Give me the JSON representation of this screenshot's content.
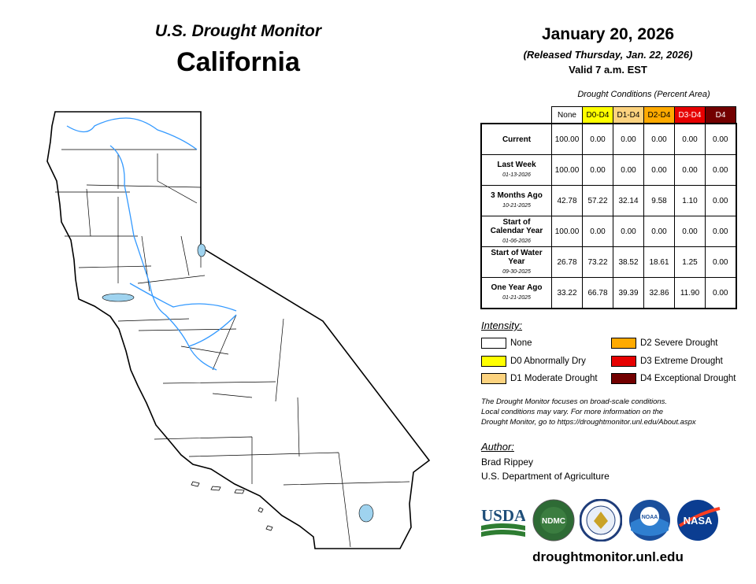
{
  "header": {
    "title": "U.S. Drought Monitor",
    "region": "California",
    "date": "January 20, 2026",
    "released": "(Released Thursday, Jan. 22, 2026)",
    "valid": "Valid 7 a.m. EST"
  },
  "table": {
    "title": "Drought Conditions (Percent Area)",
    "columns": [
      {
        "label": "None",
        "color": "#ffffff",
        "text_color": "#000000"
      },
      {
        "label": "D0-D4",
        "color": "#ffff00",
        "text_color": "#000000"
      },
      {
        "label": "D1-D4",
        "color": "#fcd37f",
        "text_color": "#000000"
      },
      {
        "label": "D2-D4",
        "color": "#ffaa00",
        "text_color": "#000000"
      },
      {
        "label": "D3-D4",
        "color": "#e60000",
        "text_color": "#ffffff"
      },
      {
        "label": "D4",
        "color": "#730000",
        "text_color": "#ffffff"
      }
    ],
    "rows": [
      {
        "label": "Current",
        "sub": "",
        "values": [
          "100.00",
          "0.00",
          "0.00",
          "0.00",
          "0.00",
          "0.00"
        ]
      },
      {
        "label": "Last Week",
        "sub": "01-13-2026",
        "values": [
          "100.00",
          "0.00",
          "0.00",
          "0.00",
          "0.00",
          "0.00"
        ]
      },
      {
        "label": "3 Months Ago",
        "sub": "10-21-2025",
        "values": [
          "42.78",
          "57.22",
          "32.14",
          "9.58",
          "1.10",
          "0.00"
        ]
      },
      {
        "label": "Start of Calendar Year",
        "sub": "01-06-2026",
        "values": [
          "100.00",
          "0.00",
          "0.00",
          "0.00",
          "0.00",
          "0.00"
        ]
      },
      {
        "label": "Start of Water Year",
        "sub": "09-30-2025",
        "values": [
          "26.78",
          "73.22",
          "38.52",
          "18.61",
          "1.25",
          "0.00"
        ]
      },
      {
        "label": "One Year Ago",
        "sub": "01-21-2025",
        "values": [
          "33.22",
          "66.78",
          "39.39",
          "32.86",
          "11.90",
          "0.00"
        ]
      }
    ]
  },
  "legend": {
    "title": "Intensity:",
    "items": [
      {
        "label": "None",
        "color": "#ffffff"
      },
      {
        "label": "D0 Abnormally Dry",
        "color": "#ffff00"
      },
      {
        "label": "D1 Moderate Drought",
        "color": "#fcd37f"
      },
      {
        "label": "D2 Severe Drought",
        "color": "#ffaa00"
      },
      {
        "label": "D3 Extreme Drought",
        "color": "#e60000"
      },
      {
        "label": "D4 Exceptional Drought",
        "color": "#730000"
      }
    ]
  },
  "note": {
    "line1": "The Drought Monitor focuses on broad-scale conditions.",
    "line2": "Local conditions may vary. For more information on the",
    "line3": "Drought Monitor, go to https://droughtmonitor.unl.edu/About.aspx"
  },
  "author": {
    "title": "Author:",
    "name": "Brad Rippey",
    "org": "U.S. Department of Agriculture"
  },
  "logos": {
    "usda": "USDA",
    "ndmc": "NDMC",
    "noaa": "NOAA",
    "nasa": "NASA"
  },
  "map": {
    "water_color": "#9fd3ef",
    "river_color": "#3399ff"
  },
  "footer": {
    "url": "droughtmonitor.unl.edu"
  }
}
